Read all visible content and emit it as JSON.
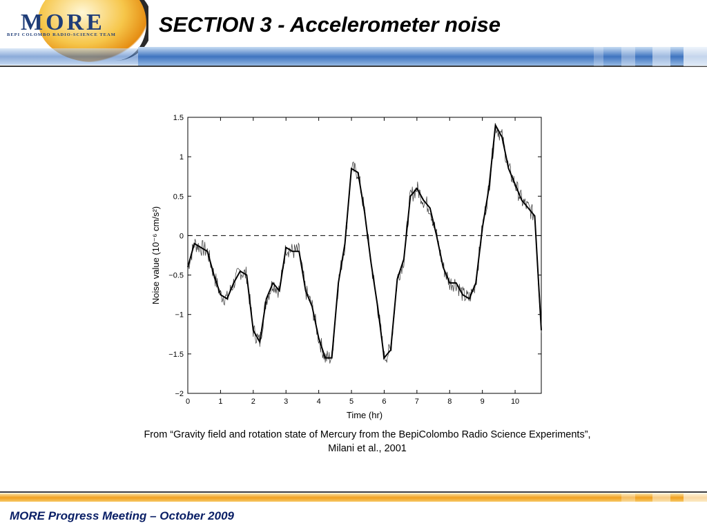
{
  "slide": {
    "title": "SECTION 3 - Accelerometer noise",
    "footer": "MORE Progress Meeting – October 2009",
    "caption_line1": "From “Gravity field and rotation state of Mercury from the BepiColombo Radio Science Experiments”,",
    "caption_line2": "Milani et al., 2001"
  },
  "logo": {
    "name": "MORE",
    "subtitle": "BEPI COLOMBO RADIO-SCIENCE TEAM",
    "icon": "mercury-symbol-icon"
  },
  "colors": {
    "title_text": "#000000",
    "footer_text": "#0a1f66",
    "top_band": "#4a7fc4",
    "bottom_band": "#f0a020"
  },
  "chart_data": {
    "type": "line",
    "title": "",
    "xlabel": "Time (hr)",
    "ylabel": "Noise value (10⁻⁶ cm/s²)",
    "xlim": [
      0,
      10.8
    ],
    "ylim": [
      -2,
      1.5
    ],
    "xticks": [
      0,
      1,
      2,
      3,
      4,
      5,
      6,
      7,
      8,
      9,
      10
    ],
    "yticks": [
      -2,
      -1.5,
      -1,
      -0.5,
      0,
      0.5,
      1,
      1.5
    ],
    "ytick_labels": [
      "−2",
      "−1.5",
      "−1",
      "−0.5",
      "0",
      "0.5",
      "1",
      "1.5"
    ],
    "reference_line": {
      "y": 0,
      "style": "dashed"
    },
    "grid": false,
    "series": [
      {
        "x": [
          0,
          0.2,
          0.4,
          0.6,
          0.8,
          1.0,
          1.2,
          1.4,
          1.6,
          1.8,
          2.0,
          2.2,
          2.4,
          2.6,
          2.8,
          3.0,
          3.2,
          3.4,
          3.6,
          3.8,
          4.0,
          4.2,
          4.4,
          4.6,
          4.8,
          5.0,
          5.2,
          5.4,
          5.6,
          5.8,
          6.0,
          6.2,
          6.4,
          6.6,
          6.8,
          7.0,
          7.2,
          7.4,
          7.6,
          7.8,
          8.0,
          8.2,
          8.4,
          8.6,
          8.8,
          9.0,
          9.2,
          9.4,
          9.6,
          9.8,
          10.0,
          10.2,
          10.4,
          10.6,
          10.8
        ],
        "values": [
          -0.4,
          -0.1,
          -0.15,
          -0.2,
          -0.5,
          -0.75,
          -0.8,
          -0.6,
          -0.45,
          -0.5,
          -1.2,
          -1.35,
          -0.8,
          -0.6,
          -0.7,
          -0.15,
          -0.2,
          -0.2,
          -0.7,
          -0.9,
          -1.3,
          -1.55,
          -1.55,
          -0.6,
          -0.1,
          0.85,
          0.8,
          0.3,
          -0.35,
          -0.9,
          -1.55,
          -1.45,
          -0.55,
          -0.3,
          0.5,
          0.6,
          0.45,
          0.35,
          0.0,
          -0.4,
          -0.6,
          -0.6,
          -0.75,
          -0.8,
          -0.6,
          0.1,
          0.6,
          1.4,
          1.25,
          0.85,
          0.65,
          0.45,
          0.35,
          0.25,
          -1.2
        ]
      }
    ]
  }
}
